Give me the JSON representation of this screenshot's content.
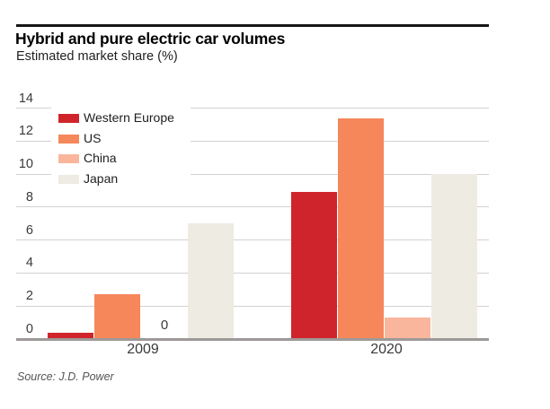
{
  "page": {
    "title": "Hybrid and pure electric car volumes",
    "subtitle": "Estimated market share (%)",
    "source": "Source: J.D. Power"
  },
  "colors": {
    "rule": "#151515",
    "gridline": "#d4d0d0",
    "baseline": "#9d9999",
    "legend_background": "#ffffff"
  },
  "chart_data": {
    "type": "bar",
    "title": "Hybrid and pure electric car volumes",
    "subtitle": "Estimated market share (%)",
    "xlabel": "",
    "ylabel": "Estimated market share (%)",
    "categories": [
      "2009",
      "2020"
    ],
    "series": [
      {
        "name": "Western Europe",
        "color": "#d0242c",
        "values": [
          0.4,
          8.9
        ]
      },
      {
        "name": "US",
        "color": "#f5875a",
        "values": [
          2.7,
          13.4
        ]
      },
      {
        "name": "China",
        "color": "#f9b69c",
        "values": [
          0,
          1.3
        ]
      },
      {
        "name": "Japan",
        "color": "#edebe2",
        "values": [
          7.0,
          10.0
        ]
      }
    ],
    "ylim": [
      0,
      14
    ],
    "yticks": [
      0,
      2,
      4,
      6,
      8,
      10,
      12,
      14
    ],
    "zero_value_label": "0",
    "grid": "horizontal",
    "legend_position": "top-left",
    "source": "Source: J.D. Power"
  }
}
